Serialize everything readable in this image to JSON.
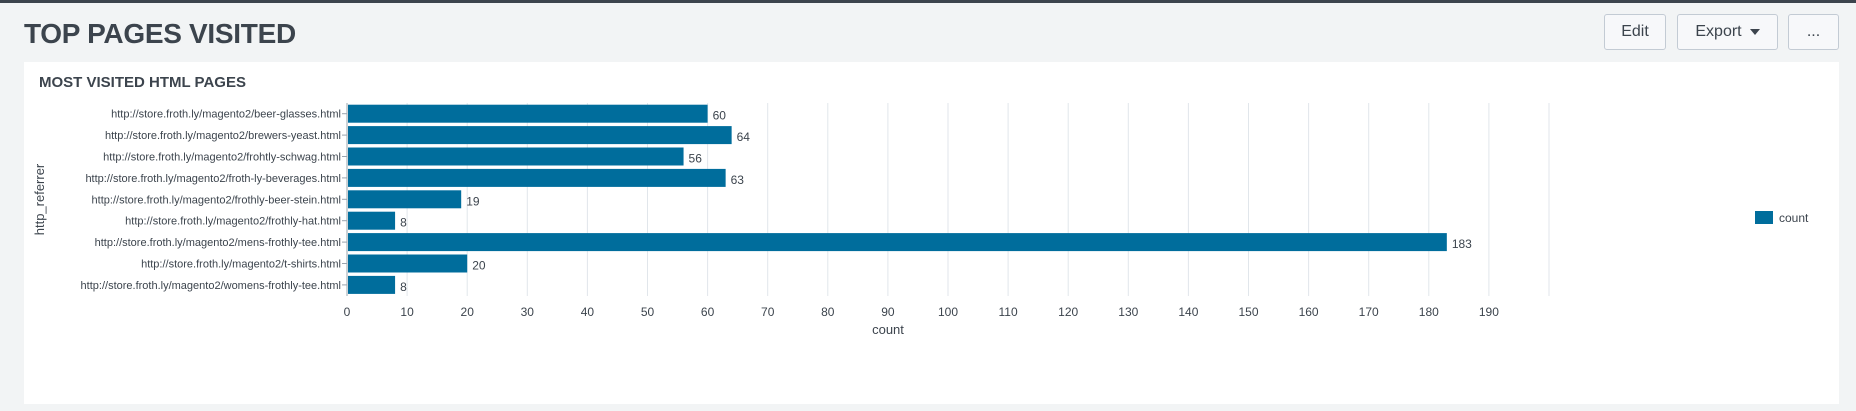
{
  "dashboard": {
    "title": "TOP PAGES VISITED",
    "edit_label": "Edit",
    "export_label": "Export",
    "more_label": "..."
  },
  "panel": {
    "title": "MOST VISITED HTML PAGES"
  },
  "colors": {
    "bar": "#006d9c",
    "grid": "#e1e6eb",
    "background": "#f2f4f5",
    "panel": "#ffffff",
    "text": "#3c444d"
  },
  "chart_data": {
    "type": "bar",
    "orientation": "horizontal",
    "categories": [
      "http://store.froth.ly/magento2/beer-glasses.html",
      "http://store.froth.ly/magento2/brewers-yeast.html",
      "http://store.froth.ly/magento2/frohtly-schwag.html",
      "http://store.froth.ly/magento2/froth-ly-beverages.html",
      "http://store.froth.ly/magento2/frothly-beer-stein.html",
      "http://store.froth.ly/magento2/frothly-hat.html",
      "http://store.froth.ly/magento2/mens-frothly-tee.html",
      "http://store.froth.ly/magento2/t-shirts.html",
      "http://store.froth.ly/magento2/womens-frothly-tee.html"
    ],
    "series": [
      {
        "name": "count",
        "values": [
          60,
          64,
          56,
          63,
          19,
          8,
          183,
          20,
          8
        ]
      }
    ],
    "xlabel": "count",
    "ylabel": "http_referrer",
    "xlim": [
      0,
      200
    ],
    "xticks": [
      0,
      10,
      20,
      30,
      40,
      50,
      60,
      70,
      80,
      90,
      100,
      110,
      120,
      130,
      140,
      150,
      160,
      170,
      180,
      190
    ],
    "grid": true,
    "legend": "right"
  }
}
